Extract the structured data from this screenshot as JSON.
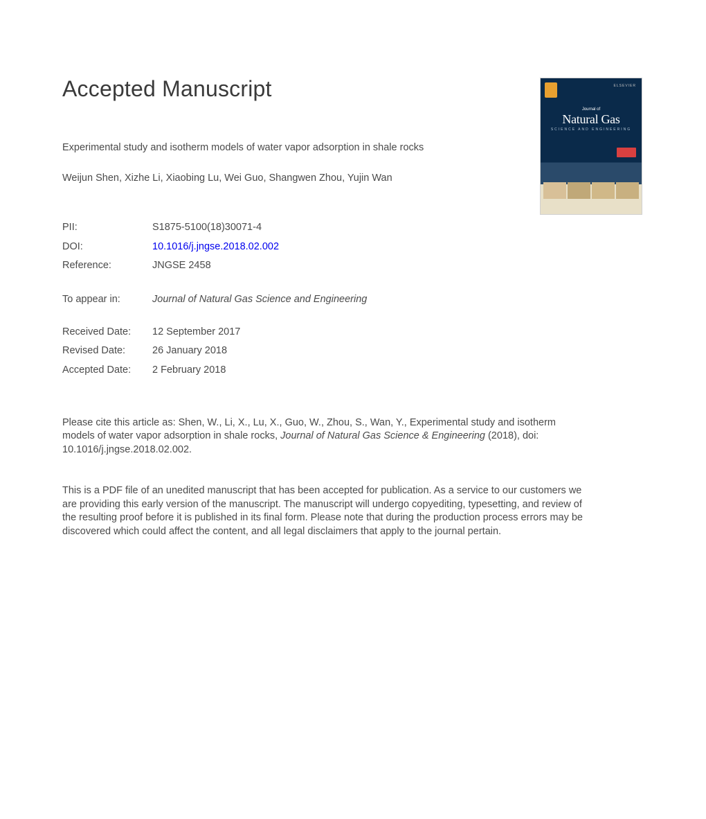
{
  "heading": "Accepted Manuscript",
  "article": {
    "title": "Experimental study and isotherm models of water vapor adsorption in shale rocks",
    "authors": "Weijun Shen, Xizhe Li, Xiaobing Lu, Wei Guo, Shangwen Zhou, Yujin Wan"
  },
  "meta": {
    "pii_label": "PII:",
    "pii_value": "S1875-5100(18)30071-4",
    "doi_label": "DOI:",
    "doi_value": "10.1016/j.jngse.2018.02.002",
    "reference_label": "Reference:",
    "reference_value": "JNGSE 2458"
  },
  "appear": {
    "label": "To appear in:",
    "journal": "Journal of Natural Gas Science and Engineering"
  },
  "dates": {
    "received_label": "Received Date:",
    "received_value": "12 September 2017",
    "revised_label": "Revised Date:",
    "revised_value": "26 January 2018",
    "accepted_label": "Accepted Date:",
    "accepted_value": "2 February 2018"
  },
  "citation": {
    "prefix": "Please cite this article as: Shen, W., Li, X., Lu, X., Guo, W., Zhou, S., Wan, Y., Experimental study and isotherm models of water vapor adsorption in shale rocks, ",
    "journal_italic": "Journal of Natural Gas Science & Engineering",
    "suffix": " (2018), doi: 10.1016/j.jngse.2018.02.002."
  },
  "disclaimer": "This is a PDF file of an unedited manuscript that has been accepted for publication. As a service to our customers we are providing this early version of the manuscript. The manuscript will undergo copyediting, typesetting, and review of the resulting proof before it is published in its final form. Please note that during the production process errors may be discovered which could affect the content, and all legal disclaimers that apply to the journal pertain.",
  "cover": {
    "publisher_small": "Journal of",
    "title_big": "Natural Gas",
    "subtitle": "SCIENCE AND ENGINEERING",
    "elsevier": "ELSEVIER"
  }
}
